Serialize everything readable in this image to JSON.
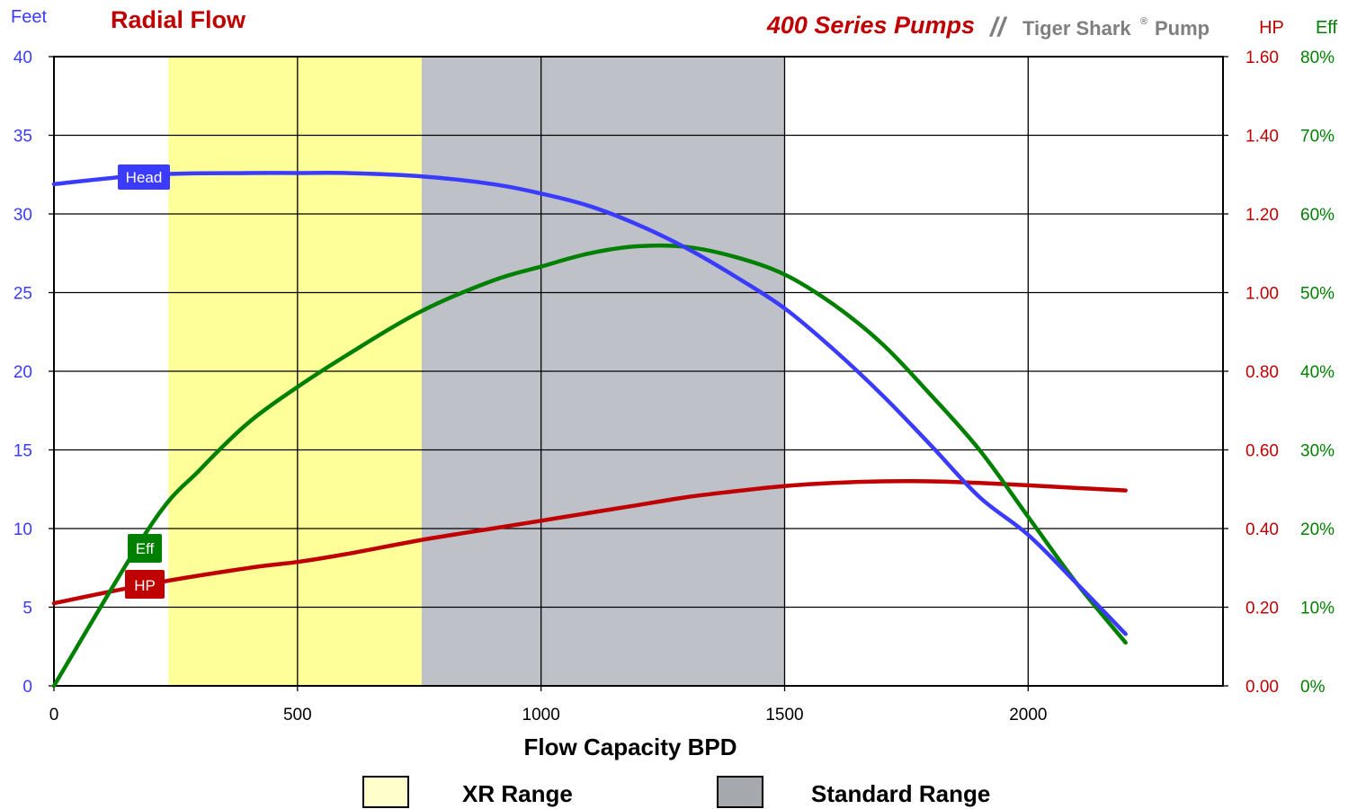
{
  "header": {
    "title": "Radial Flow",
    "series_name": "400 Series Pumps",
    "separator": "//",
    "brand_name": "Tiger Shark",
    "brand_mark": "®",
    "brand_suffix": "Pump"
  },
  "colors": {
    "head": "#3b3bff",
    "hp": "#c00000",
    "eff": "#008000",
    "xr_band": "#ffff99",
    "std_band": "#bec2c8",
    "title_red": "#c00000"
  },
  "legend": {
    "xr_label": "XR Range",
    "standard_label": "Standard Range"
  },
  "chart_data": {
    "type": "line",
    "xlabel": "Flow Capacity BPD",
    "x_ticks": [
      0,
      500,
      1000,
      1500,
      2000
    ],
    "xlim": [
      0,
      2400
    ],
    "grid": true,
    "axes": {
      "left": {
        "label": "Feet",
        "ylim": [
          0,
          40
        ],
        "ticks": [
          "0",
          "5",
          "10",
          "15",
          "20",
          "25",
          "30",
          "35",
          "40"
        ]
      },
      "right1": {
        "label": "HP",
        "ylim": [
          0,
          1.6
        ],
        "ticks": [
          "0.00",
          "0.20",
          "0.40",
          "0.60",
          "0.80",
          "1.00",
          "1.20",
          "1.40",
          "1.60"
        ]
      },
      "right2": {
        "label": "Eff",
        "ylim": [
          0,
          80
        ],
        "ticks": [
          "0%",
          "10%",
          "20%",
          "30%",
          "40%",
          "50%",
          "60%",
          "70%",
          "80%"
        ]
      }
    },
    "bands": [
      {
        "name": "XR Range",
        "from": 235,
        "to": 755
      },
      {
        "name": "Standard Range",
        "from": 755,
        "to": 1500
      }
    ],
    "series": [
      {
        "name": "Head",
        "axis": "left",
        "x": [
          0,
          200,
          400,
          500,
          600,
          750,
          900,
          1000,
          1100,
          1200,
          1300,
          1400,
          1500,
          1600,
          1700,
          1800,
          1900,
          2000,
          2100,
          2200
        ],
        "y": [
          31.9,
          32.5,
          32.6,
          32.6,
          32.6,
          32.4,
          31.9,
          31.3,
          30.5,
          29.3,
          27.8,
          26.0,
          24.0,
          21.4,
          18.5,
          15.3,
          12.0,
          9.6,
          6.5,
          3.3
        ]
      },
      {
        "name": "HP",
        "axis": "right1",
        "x": [
          0,
          200,
          400,
          500,
          600,
          750,
          900,
          1000,
          1100,
          1200,
          1300,
          1400,
          1500,
          1600,
          1700,
          1800,
          1900,
          2000,
          2100,
          2200
        ],
        "y": [
          0.21,
          0.26,
          0.3,
          0.315,
          0.335,
          0.37,
          0.4,
          0.42,
          0.44,
          0.46,
          0.48,
          0.495,
          0.508,
          0.516,
          0.52,
          0.52,
          0.516,
          0.51,
          0.503,
          0.497
        ]
      },
      {
        "name": "Eff",
        "axis": "right2",
        "x": [
          0,
          200,
          300,
          400,
          500,
          600,
          750,
          900,
          1000,
          1100,
          1200,
          1300,
          1400,
          1500,
          1600,
          1700,
          1800,
          1900,
          2000,
          2100,
          2200
        ],
        "y": [
          0,
          20.5,
          27.5,
          33.5,
          38.0,
          42.0,
          47.5,
          51.5,
          53.3,
          55.0,
          55.9,
          55.8,
          54.5,
          52.3,
          48.5,
          43.5,
          37.0,
          30.0,
          21.5,
          13.0,
          5.5
        ]
      }
    ]
  }
}
